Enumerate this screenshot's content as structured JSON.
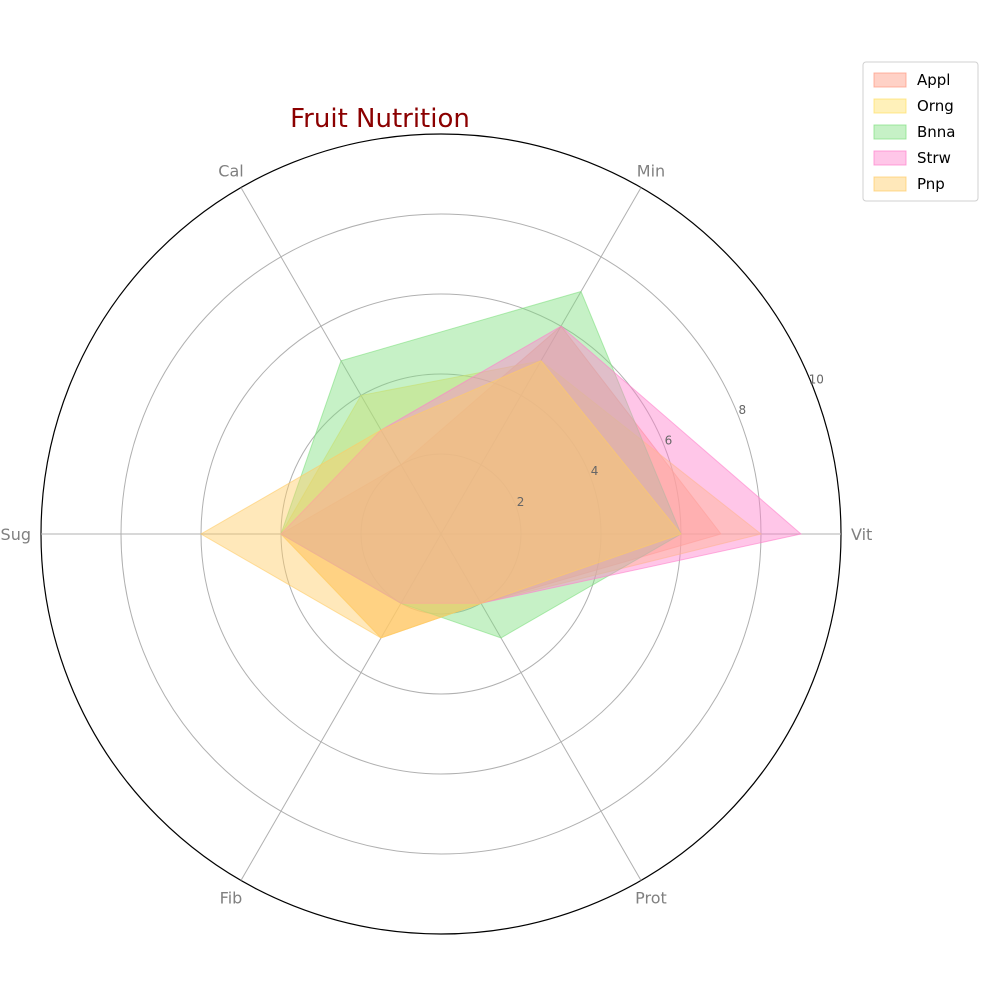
{
  "chart_data": {
    "type": "radar",
    "title": "Fruit Nutrition",
    "axes": [
      "Vit",
      "Min",
      "Cal",
      "Sug",
      "Fib",
      "Prot"
    ],
    "rlim": [
      0,
      10
    ],
    "rticks": [
      2,
      4,
      6,
      8,
      10
    ],
    "grid": true,
    "legend_position": "top-right",
    "series": [
      {
        "name": "Appl",
        "color": "#ff9980",
        "values": [
          7,
          6,
          2,
          4,
          3,
          2
        ]
      },
      {
        "name": "Orng",
        "color": "#ffe066",
        "values": [
          8,
          5,
          4,
          4,
          3,
          2
        ]
      },
      {
        "name": "Bnna",
        "color": "#80e080",
        "values": [
          6,
          7,
          5,
          4,
          2,
          3
        ]
      },
      {
        "name": "Strw",
        "color": "#ff80cc",
        "values": [
          9,
          6,
          3,
          4,
          2,
          2
        ]
      },
      {
        "name": "Pnp",
        "color": "#ffcc66",
        "values": [
          6,
          5,
          3,
          6,
          3,
          2
        ]
      }
    ]
  }
}
